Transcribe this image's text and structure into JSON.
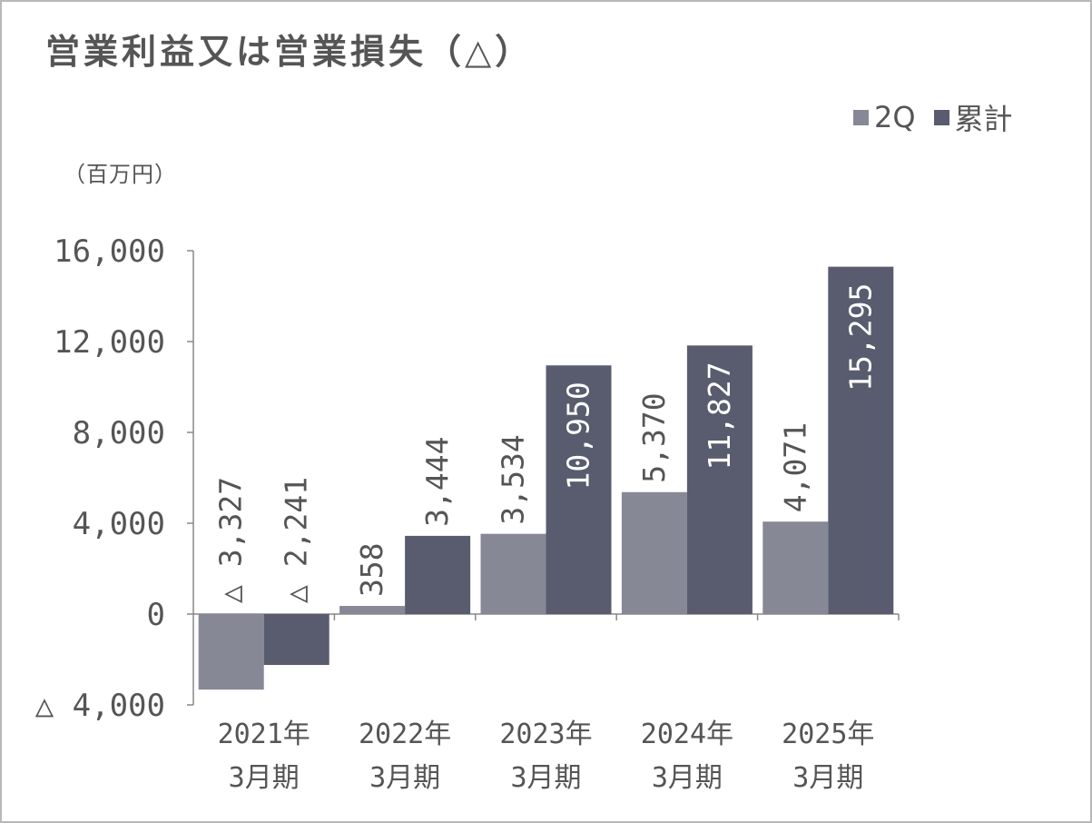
{
  "title": "営業利益又は営業損失（△）",
  "unit": "（百万円）",
  "colors": {
    "q2": "#868896",
    "cumulative": "#585c6e",
    "axis": "#888888",
    "text": "#555555"
  },
  "chart_data": {
    "type": "bar",
    "categories": [
      [
        "2021年",
        "3月期"
      ],
      [
        "2022年",
        "3月期"
      ],
      [
        "2023年",
        "3月期"
      ],
      [
        "2024年",
        "3月期"
      ],
      [
        "2025年",
        "3月期"
      ]
    ],
    "series": [
      {
        "name": "2Q",
        "values": [
          -3327,
          358,
          3534,
          5370,
          4071
        ],
        "labels": [
          "△ 3,327",
          "358",
          "3,534",
          "5,370",
          "4,071"
        ]
      },
      {
        "name": "累計",
        "values": [
          -2241,
          3444,
          10950,
          11827,
          15295
        ],
        "labels": [
          "△ 2,241",
          "3,444",
          "10,950",
          "11,827",
          "15,295"
        ]
      }
    ],
    "yticks": [
      16000,
      12000,
      8000,
      4000,
      0,
      -4000
    ],
    "ytick_labels": [
      "16,000",
      "12,000",
      "8,000",
      "4,000",
      "0",
      "△ 4,000"
    ],
    "ylim": [
      -4000,
      16000
    ],
    "grid": false,
    "legend_position": "top-right"
  }
}
